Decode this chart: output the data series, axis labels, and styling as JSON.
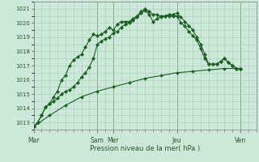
{
  "xlabel": "Pression niveau de la mer( hPa )",
  "background_color": "#cce8d8",
  "grid_color": "#a8ccb8",
  "line_color": "#1a6020",
  "ylim": [
    1012.5,
    1021.5
  ],
  "yticks": [
    1013,
    1014,
    1015,
    1016,
    1017,
    1018,
    1019,
    1020,
    1021
  ],
  "xtick_labels": [
    "Mar",
    "Sam",
    "Mer",
    "Jeu",
    "Ven"
  ],
  "xtick_positions": [
    0,
    96,
    120,
    216,
    312
  ],
  "total_hours": 336,
  "vline_positions": [
    0,
    96,
    120,
    216,
    312
  ],
  "series1_x": [
    0,
    6,
    12,
    18,
    24,
    30,
    36,
    42,
    48,
    54,
    60,
    66,
    72,
    78,
    84,
    90,
    96,
    102,
    108,
    114,
    120,
    126,
    132,
    138,
    144,
    150,
    156,
    162,
    168,
    174,
    180,
    186,
    192,
    198,
    204,
    210,
    216,
    222,
    228,
    234,
    240,
    246,
    252,
    258,
    264,
    270,
    276,
    282,
    288,
    294,
    300,
    306,
    312
  ],
  "series1_y": [
    1012.7,
    1013.0,
    1013.5,
    1014.1,
    1014.3,
    1014.8,
    1015.2,
    1016.0,
    1016.3,
    1017.0,
    1017.4,
    1017.6,
    1017.8,
    1018.3,
    1018.8,
    1019.2,
    1019.1,
    1019.2,
    1019.4,
    1019.7,
    1019.5,
    1019.9,
    1020.1,
    1020.1,
    1020.1,
    1020.3,
    1020.5,
    1020.8,
    1021.0,
    1020.8,
    1020.6,
    1020.6,
    1020.4,
    1020.5,
    1020.5,
    1020.5,
    1020.5,
    1020.0,
    1019.8,
    1019.4,
    1019.1,
    1018.8,
    1018.2,
    1017.5,
    1017.1,
    1017.1,
    1017.1,
    1017.3,
    1017.5,
    1017.2,
    1017.0,
    1016.8,
    1016.8
  ],
  "series2_x": [
    0,
    6,
    12,
    18,
    24,
    30,
    36,
    42,
    48,
    54,
    60,
    66,
    72,
    78,
    84,
    90,
    96,
    102,
    108,
    114,
    120,
    126,
    132,
    138,
    144,
    150,
    156,
    162,
    168,
    174,
    180,
    186,
    192,
    198,
    204,
    210,
    216,
    222,
    228,
    234,
    240,
    246,
    252,
    258,
    264,
    270,
    276,
    282,
    288,
    294,
    300,
    306,
    312
  ],
  "series2_y": [
    1012.7,
    1013.0,
    1013.5,
    1014.1,
    1014.3,
    1014.5,
    1014.7,
    1015.0,
    1015.2,
    1015.3,
    1015.5,
    1015.8,
    1016.2,
    1016.5,
    1016.9,
    1017.5,
    1018.5,
    1018.7,
    1018.9,
    1019.0,
    1019.3,
    1019.4,
    1019.7,
    1019.9,
    1020.0,
    1020.2,
    1020.4,
    1020.7,
    1020.9,
    1020.6,
    1020.1,
    1020.3,
    1020.5,
    1020.5,
    1020.6,
    1020.6,
    1020.7,
    1020.4,
    1020.1,
    1019.8,
    1019.5,
    1019.0,
    1018.5,
    1017.8,
    1017.1,
    1017.1,
    1017.1,
    1017.3,
    1017.5,
    1017.2,
    1017.0,
    1016.8,
    1016.8
  ],
  "series3_x": [
    0,
    24,
    48,
    72,
    96,
    120,
    144,
    168,
    192,
    216,
    240,
    264,
    288,
    312
  ],
  "series3_y": [
    1012.7,
    1013.5,
    1014.2,
    1014.8,
    1015.2,
    1015.5,
    1015.8,
    1016.1,
    1016.3,
    1016.5,
    1016.6,
    1016.7,
    1016.8,
    1016.8
  ]
}
